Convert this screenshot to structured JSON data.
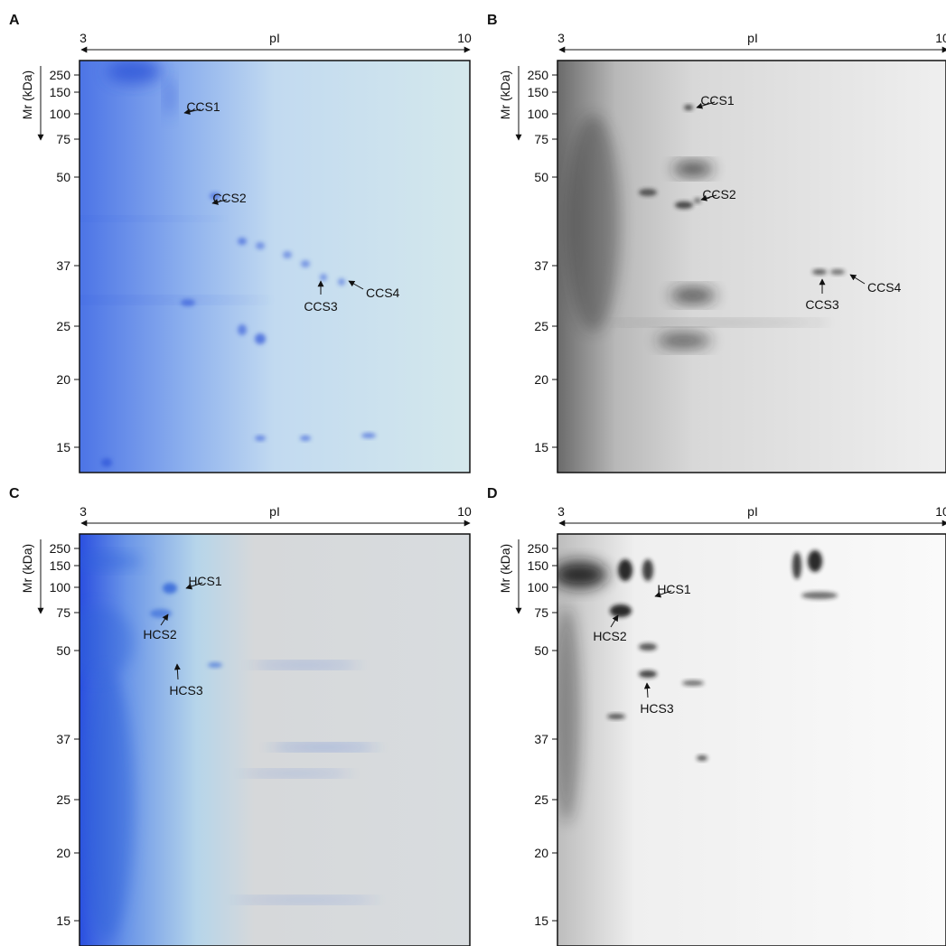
{
  "panels": [
    {
      "label": "A",
      "x_axis": {
        "min": "3",
        "title": "pI",
        "max": "10"
      },
      "y_axis": {
        "title": "Mr (kDa)",
        "ticks": [
          "250",
          "150",
          "100",
          "75",
          "50",
          "37",
          "25",
          "20",
          "15"
        ]
      },
      "annotations": [
        "CCS1",
        "CCS2",
        "CCS3",
        "CCS4"
      ]
    },
    {
      "label": "B",
      "x_axis": {
        "min": "3",
        "title": "pI",
        "max": "10"
      },
      "y_axis": {
        "title": "Mr (kDa)",
        "ticks": [
          "250",
          "150",
          "100",
          "75",
          "50",
          "37",
          "25",
          "20",
          "15"
        ]
      },
      "annotations": [
        "CCS1",
        "CCS2",
        "CCS3",
        "CCS4"
      ]
    },
    {
      "label": "C",
      "x_axis": {
        "min": "3",
        "title": "pI",
        "max": "10"
      },
      "y_axis": {
        "title": "Mr (kDa)",
        "ticks": [
          "250",
          "150",
          "100",
          "75",
          "50",
          "37",
          "25",
          "20",
          "15"
        ]
      },
      "annotations": [
        "HCS1",
        "HCS2",
        "HCS3"
      ]
    },
    {
      "label": "D",
      "x_axis": {
        "min": "3",
        "title": "pI",
        "max": "10"
      },
      "y_axis": {
        "title": "Mr (kDa)",
        "ticks": [
          "250",
          "150",
          "100",
          "75",
          "50",
          "37",
          "25",
          "20",
          "15"
        ]
      },
      "annotations": [
        "HCS1",
        "HCS2",
        "HCS3"
      ]
    }
  ]
}
